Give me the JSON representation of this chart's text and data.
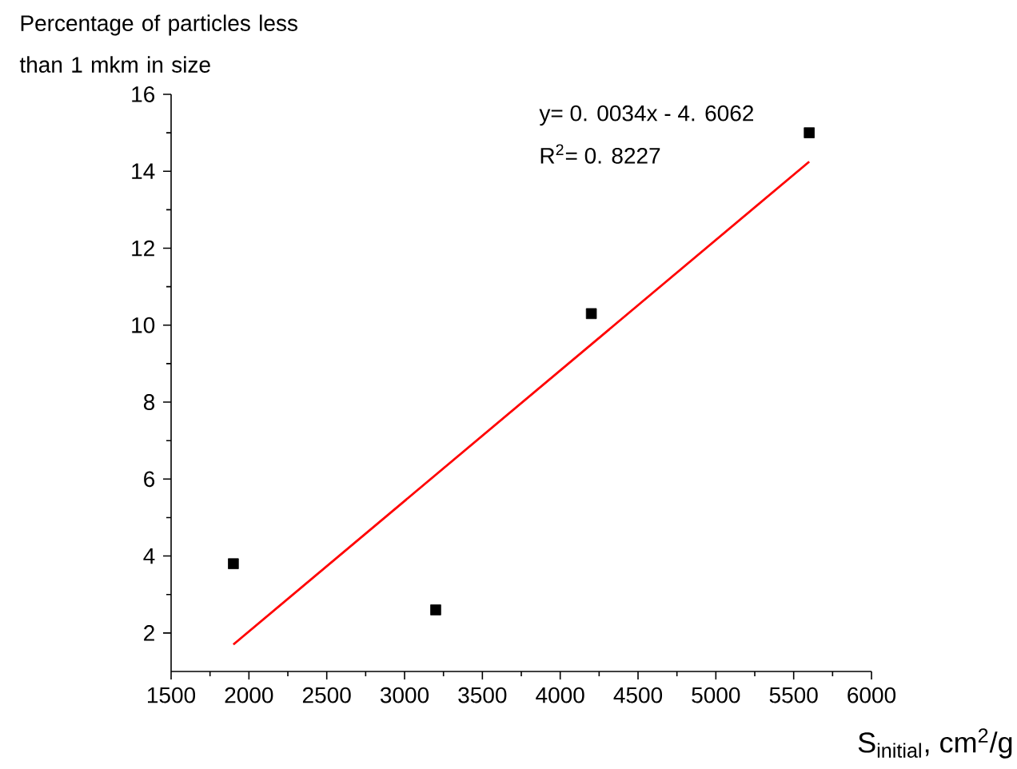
{
  "chart_data": {
    "type": "scatter",
    "ylabel": "Percentage of particles less than 1 mkm in size",
    "xlabel": "S$_{initial}$, cm$^{2}$/g",
    "annotations": [
      "y= 0. 0034x - 4. 6062",
      "R$^{2}$= 0. 8227"
    ],
    "series": [
      {
        "color": "#000000",
        "marker": "square",
        "x": [
          1900,
          3200,
          4200,
          5600
        ],
        "values": [
          3.8,
          2.6,
          10.3,
          15.0
        ]
      },
      {
        "type": "line",
        "color": "#ff0000",
        "x": [
          1900,
          5600
        ],
        "values": [
          1.7,
          14.25
        ]
      }
    ],
    "line_style": "solid",
    "grid": false,
    "xlim": [
      1500,
      6000
    ],
    "ylim": [
      1,
      16
    ],
    "xticks": [
      1500,
      2000,
      2500,
      3000,
      3500,
      4000,
      4500,
      5000,
      5500,
      6000
    ],
    "yticks": [
      2,
      4,
      6,
      8,
      10,
      12,
      14,
      16
    ]
  }
}
